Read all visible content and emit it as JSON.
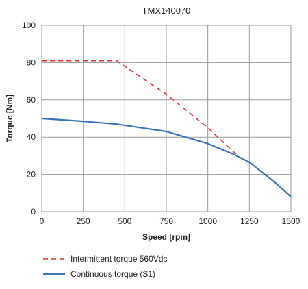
{
  "chart_data": {
    "type": "line",
    "title": "TMX140070",
    "xlabel": "Speed [rpm]",
    "ylabel": "Torque [Nm]",
    "xlim": [
      0,
      1500
    ],
    "ylim": [
      0,
      100
    ],
    "xticks": [
      0,
      250,
      500,
      750,
      1000,
      1250,
      1500
    ],
    "yticks": [
      0,
      20,
      40,
      60,
      80,
      100
    ],
    "grid": true,
    "legend_position": "bottom",
    "series": [
      {
        "name": "Intermittent torque 560Vdc",
        "color": "#e8322b",
        "style": "dashed",
        "x": [
          0,
          450,
          750,
          1000,
          1180
        ],
        "y": [
          81,
          81,
          63,
          45,
          30
        ]
      },
      {
        "name": "Continuous torque (S1)",
        "color": "#3a74b8",
        "style": "solid",
        "x": [
          0,
          250,
          450,
          750,
          1000,
          1150,
          1250,
          1400,
          1500
        ],
        "y": [
          50,
          48.5,
          47,
          43,
          36.5,
          31,
          26.5,
          16,
          8
        ]
      }
    ]
  }
}
